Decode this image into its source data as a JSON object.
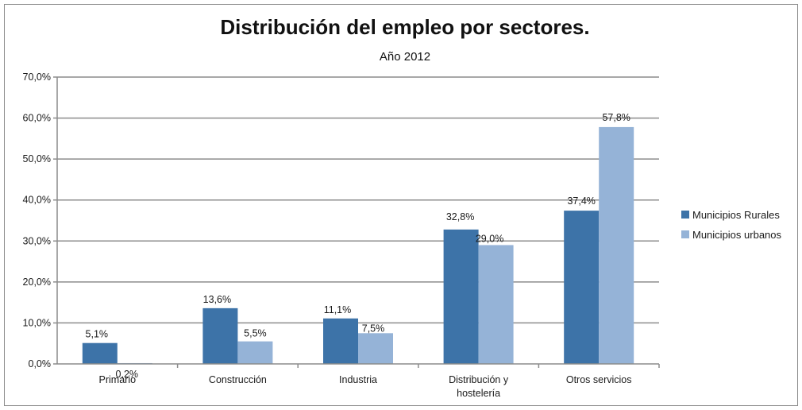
{
  "chart_data": {
    "type": "bar",
    "title": "Distribución del empleo por sectores.",
    "subtitle": "Año 2012",
    "categories": [
      [
        "Primario"
      ],
      [
        "Construcción"
      ],
      [
        "Industria"
      ],
      [
        "Distribución y",
        "hostelería"
      ],
      [
        "Otros servicios"
      ]
    ],
    "series": [
      {
        "name": "Municipios Rurales",
        "values": [
          5.1,
          13.6,
          11.1,
          32.8,
          37.4
        ],
        "labels": [
          "5,1%",
          "13,6%",
          "11,1%",
          "32,8%",
          "37,4%"
        ],
        "color": "#3d73a8"
      },
      {
        "name": "Municipios urbanos",
        "values": [
          0.2,
          5.5,
          7.5,
          29.0,
          57.8
        ],
        "labels": [
          "0,2%",
          "5,5%",
          "7,5%",
          "29,0%",
          "57,8%"
        ],
        "color": "#95b3d7"
      }
    ],
    "ylim": [
      0,
      70
    ],
    "yticks": [
      0,
      10,
      20,
      30,
      40,
      50,
      60,
      70
    ],
    "ytick_labels": [
      "0,0%",
      "10,0%",
      "20,0%",
      "30,0%",
      "40,0%",
      "50,0%",
      "60,0%",
      "70,0%"
    ],
    "grid": true,
    "legend": "right",
    "xlabel": "",
    "ylabel": ""
  }
}
